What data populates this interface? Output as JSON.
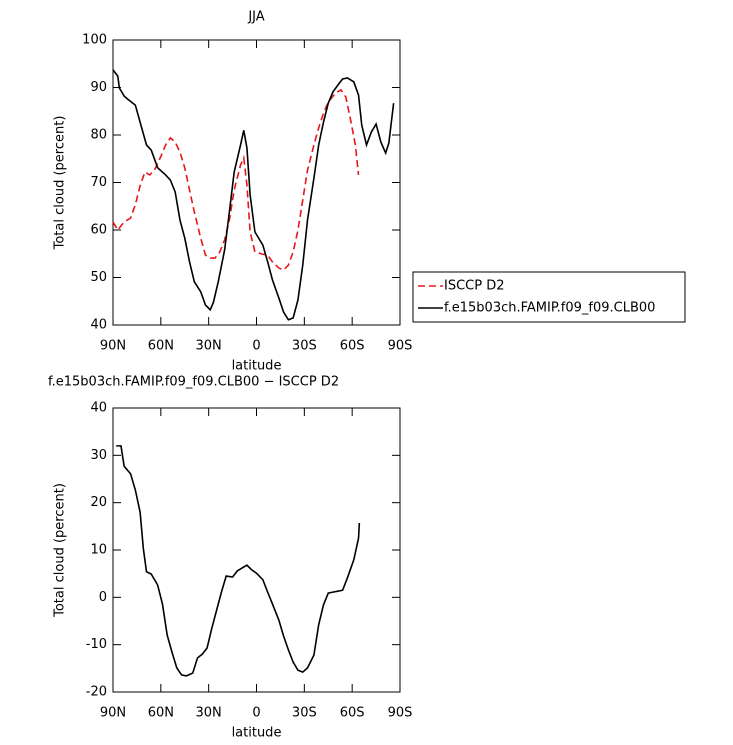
{
  "chart_data": [
    {
      "type": "line",
      "title": "JJA",
      "xlabel": "latitude",
      "ylabel": "Total cloud (percent)",
      "xlim": [
        90,
        -90
      ],
      "xticks": [
        {
          "value": 90,
          "label": "90N"
        },
        {
          "value": 60,
          "label": "60N"
        },
        {
          "value": 30,
          "label": "30N"
        },
        0,
        {
          "value": -30,
          "label": "30S"
        },
        {
          "value": -60,
          "label": "60S"
        },
        {
          "value": -90,
          "label": "90S"
        }
      ],
      "ylim": [
        40,
        100
      ],
      "yticks": [
        40,
        50,
        60,
        70,
        80,
        90,
        100
      ],
      "legend": "right",
      "series": [
        {
          "name": "ISCCP D2",
          "color": "#e8161b",
          "dashed": true,
          "x": [
            90,
            87,
            83,
            79,
            76,
            73,
            70,
            67,
            64,
            61,
            57,
            54,
            51,
            48,
            45,
            42,
            39,
            35,
            32,
            29,
            26,
            23,
            20,
            17,
            14,
            10,
            8,
            6,
            4,
            1,
            -4,
            -7,
            -10,
            -14,
            -17,
            -20,
            -23,
            -26,
            -29,
            -32,
            -36,
            -39,
            -42,
            -45,
            -48,
            -51,
            -53,
            -56,
            -59,
            -62,
            -64
          ],
          "values": [
            61.7,
            60,
            61.7,
            62.5,
            65.3,
            69.3,
            72.2,
            71.6,
            72.6,
            74.7,
            77.9,
            79.4,
            78.5,
            76.4,
            73.1,
            68.4,
            63.8,
            58.3,
            54.7,
            54.1,
            54.1,
            55.4,
            57.9,
            62.1,
            68.4,
            73.7,
            75.2,
            69.5,
            59.6,
            55.4,
            54.9,
            54.7,
            53.3,
            52,
            51.6,
            52.6,
            55.4,
            60,
            66.3,
            72.6,
            77.9,
            81.5,
            84.6,
            86.9,
            88.2,
            89.1,
            89.5,
            88,
            83.2,
            77.9,
            71.6
          ]
        },
        {
          "name": "f.e15b03ch.FAMIP.f09_f09.CLB00",
          "color": "#000000",
          "dashed": false,
          "x": [
            90,
            87,
            86,
            83,
            81,
            76,
            72,
            69,
            66,
            62,
            57,
            54,
            51,
            48,
            45,
            42,
            39,
            35,
            32,
            29,
            27,
            24,
            20,
            17,
            14,
            10,
            8,
            6,
            4,
            1,
            -4,
            -7,
            -10,
            -14,
            -17,
            -20,
            -23,
            -26,
            -29,
            -32,
            -36,
            -39,
            -42,
            -45,
            -48,
            -51,
            -54,
            -57,
            -61,
            -64,
            -66,
            -69,
            -72,
            -75,
            -78,
            -81,
            -83,
            -86
          ],
          "values": [
            93.7,
            92.4,
            89.9,
            88.2,
            87.6,
            86.3,
            81.5,
            77.9,
            76.8,
            73.1,
            71.6,
            70.5,
            68,
            62.1,
            58.3,
            53.3,
            49.1,
            47,
            44.2,
            43.2,
            44.8,
            49.1,
            55.8,
            63.8,
            72.2,
            77.9,
            81,
            77.3,
            67.4,
            59.6,
            56.8,
            53.3,
            49.5,
            45.7,
            42.7,
            41.1,
            41.5,
            45.3,
            52.6,
            62.1,
            70.9,
            77.9,
            82.7,
            86.7,
            89.1,
            90.5,
            91.8,
            92,
            91.2,
            88.4,
            82.1,
            77.9,
            80.6,
            82.3,
            78.5,
            76.2,
            78.3,
            86.7
          ]
        }
      ]
    },
    {
      "type": "line",
      "title": "f.e15b03ch.FAMIP.f09_f09.CLB00 − ISCCP D2",
      "xlabel": "latitude",
      "ylabel": "Total cloud (percent)",
      "xlim": [
        90,
        -90
      ],
      "xticks": [
        {
          "value": 90,
          "label": "90N"
        },
        {
          "value": 60,
          "label": "60N"
        },
        {
          "value": 30,
          "label": "30N"
        },
        0,
        {
          "value": -30,
          "label": "30S"
        },
        {
          "value": -60,
          "label": "60S"
        },
        {
          "value": -90,
          "label": "90S"
        }
      ],
      "ylim": [
        -20,
        40
      ],
      "yticks": [
        -20,
        -10,
        0,
        10,
        20,
        30,
        40
      ],
      "series": [
        {
          "color": "#000000",
          "dashed": false,
          "x": [
            88,
            85,
            83,
            79,
            76,
            73,
            71,
            69,
            66,
            62,
            59,
            56,
            53,
            50,
            47,
            44,
            40,
            37,
            34,
            31,
            28,
            25,
            22,
            19,
            15,
            12,
            9,
            6,
            3,
            0,
            -4,
            -7,
            -10,
            -14,
            -17,
            -20,
            -23,
            -26,
            -29,
            -32,
            -36,
            -39,
            -42,
            -45,
            -48,
            -51,
            -54,
            -57,
            -61,
            -64,
            -64.5
          ],
          "values": [
            32,
            32,
            27.7,
            26.1,
            22.7,
            18,
            10.4,
            5.4,
            4.9,
            2.6,
            -1.4,
            -8,
            -11.6,
            -14.9,
            -16.4,
            -16.6,
            -16,
            -12.8,
            -12,
            -10.7,
            -6.5,
            -2.7,
            1.1,
            4.5,
            4.3,
            5.6,
            6.2,
            6.8,
            5.8,
            5.1,
            3.7,
            1.1,
            -1.4,
            -4.8,
            -8.2,
            -11.1,
            -13.7,
            -15.4,
            -15.8,
            -14.9,
            -12.2,
            -5.8,
            -1.6,
            0.9,
            1.1,
            1.3,
            1.5,
            4.1,
            7.9,
            12.5,
            15.7
          ]
        }
      ]
    }
  ]
}
